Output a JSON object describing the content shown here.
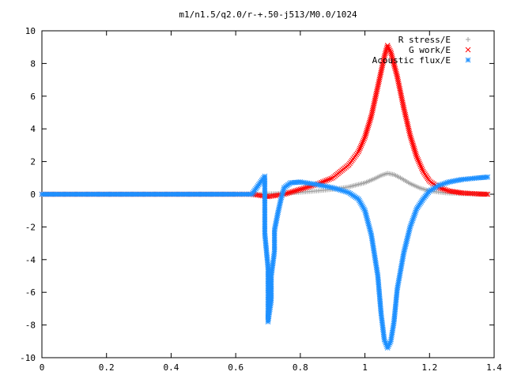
{
  "chart_data": {
    "type": "scatter",
    "title": "m1/n1.5/q2.0/r-+.50-j513/M0.0/1024",
    "xlabel": "",
    "ylabel": "",
    "xlim": [
      0,
      1.4
    ],
    "ylim": [
      -10,
      10
    ],
    "x_ticks": [
      "0",
      "0.2",
      "0.4",
      "0.6",
      "0.8",
      "1",
      "1.2",
      "1.4"
    ],
    "y_ticks": [
      "10",
      "8",
      "6",
      "4",
      "2",
      "0",
      "-2",
      "-4",
      "-6",
      "-8",
      "-10"
    ],
    "grid": false,
    "legend_position": "top-right",
    "series": [
      {
        "name": "R stress/E",
        "marker": "plus",
        "color": "#a0a0a0",
        "points": [
          [
            0.0,
            0
          ],
          [
            0.1,
            0
          ],
          [
            0.2,
            0
          ],
          [
            0.3,
            0
          ],
          [
            0.4,
            0
          ],
          [
            0.5,
            0
          ],
          [
            0.6,
            0
          ],
          [
            0.65,
            0
          ],
          [
            0.7,
            0.02
          ],
          [
            0.75,
            0.06
          ],
          [
            0.8,
            0.12
          ],
          [
            0.85,
            0.2
          ],
          [
            0.9,
            0.3
          ],
          [
            0.95,
            0.45
          ],
          [
            1.0,
            0.7
          ],
          [
            1.03,
            0.95
          ],
          [
            1.05,
            1.15
          ],
          [
            1.07,
            1.28
          ],
          [
            1.09,
            1.2
          ],
          [
            1.11,
            1.0
          ],
          [
            1.14,
            0.65
          ],
          [
            1.17,
            0.38
          ],
          [
            1.2,
            0.2
          ],
          [
            1.25,
            0.08
          ],
          [
            1.3,
            0.03
          ],
          [
            1.35,
            0.01
          ],
          [
            1.38,
            0.0
          ]
        ]
      },
      {
        "name": "G work/E",
        "marker": "cross",
        "color": "#ff0000",
        "points": [
          [
            0.0,
            0
          ],
          [
            0.1,
            0
          ],
          [
            0.2,
            0
          ],
          [
            0.3,
            0
          ],
          [
            0.4,
            0
          ],
          [
            0.5,
            0
          ],
          [
            0.6,
            0
          ],
          [
            0.65,
            0
          ],
          [
            0.7,
            -0.15
          ],
          [
            0.75,
            0.0
          ],
          [
            0.8,
            0.3
          ],
          [
            0.85,
            0.6
          ],
          [
            0.9,
            1.0
          ],
          [
            0.95,
            1.8
          ],
          [
            0.98,
            2.6
          ],
          [
            1.0,
            3.5
          ],
          [
            1.02,
            4.8
          ],
          [
            1.04,
            6.6
          ],
          [
            1.06,
            8.4
          ],
          [
            1.07,
            9.1
          ],
          [
            1.08,
            8.7
          ],
          [
            1.1,
            7.2
          ],
          [
            1.12,
            5.3
          ],
          [
            1.14,
            3.6
          ],
          [
            1.16,
            2.3
          ],
          [
            1.18,
            1.4
          ],
          [
            1.2,
            0.8
          ],
          [
            1.23,
            0.4
          ],
          [
            1.26,
            0.2
          ],
          [
            1.3,
            0.08
          ],
          [
            1.35,
            0.02
          ],
          [
            1.38,
            0.0
          ]
        ]
      },
      {
        "name": "Acoustic flux/E",
        "marker": "star",
        "color": "#1e90ff",
        "points": [
          [
            0.0,
            0
          ],
          [
            0.1,
            0
          ],
          [
            0.2,
            0
          ],
          [
            0.3,
            0
          ],
          [
            0.4,
            0
          ],
          [
            0.5,
            0
          ],
          [
            0.6,
            0
          ],
          [
            0.65,
            0
          ],
          [
            0.69,
            1.1
          ],
          [
            0.69,
            -2.4
          ],
          [
            0.7,
            -4.5
          ],
          [
            0.7,
            -6.0
          ],
          [
            0.7,
            -7.2
          ],
          [
            0.7,
            -7.8
          ],
          [
            0.71,
            -6.5
          ],
          [
            0.71,
            -5.0
          ],
          [
            0.72,
            -3.5
          ],
          [
            0.72,
            -2.2
          ],
          [
            0.73,
            -1.2
          ],
          [
            0.74,
            -0.3
          ],
          [
            0.75,
            0.4
          ],
          [
            0.77,
            0.7
          ],
          [
            0.8,
            0.75
          ],
          [
            0.85,
            0.6
          ],
          [
            0.9,
            0.4
          ],
          [
            0.95,
            0.1
          ],
          [
            0.98,
            -0.3
          ],
          [
            1.0,
            -1.0
          ],
          [
            1.02,
            -2.5
          ],
          [
            1.04,
            -5.0
          ],
          [
            1.05,
            -7.3
          ],
          [
            1.06,
            -8.9
          ],
          [
            1.07,
            -9.4
          ],
          [
            1.08,
            -9.0
          ],
          [
            1.09,
            -7.8
          ],
          [
            1.1,
            -5.8
          ],
          [
            1.12,
            -3.6
          ],
          [
            1.14,
            -2.0
          ],
          [
            1.16,
            -0.9
          ],
          [
            1.18,
            -0.3
          ],
          [
            1.2,
            0.2
          ],
          [
            1.23,
            0.55
          ],
          [
            1.26,
            0.75
          ],
          [
            1.3,
            0.9
          ],
          [
            1.35,
            1.0
          ],
          [
            1.38,
            1.05
          ]
        ]
      }
    ]
  }
}
